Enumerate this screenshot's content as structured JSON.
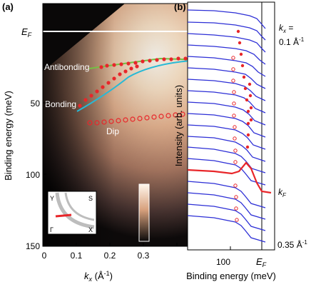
{
  "panel_a": {
    "label": "(a)",
    "ef_label": "E",
    "ef_sub": "F",
    "kf_label": "k",
    "kf_sub": "F",
    "ylabel": "Binding energy (meV)",
    "xlabel_k": "k",
    "xlabel_sub": "x",
    "xlabel_unit": " (Å",
    "xlabel_exp": "-1",
    "xlabel_close": ")",
    "yticks": [
      "50",
      "100",
      "150"
    ],
    "xticks": [
      "0",
      "0.1",
      "0.2",
      "0.3"
    ],
    "annotations": {
      "antibonding": "Antibonding",
      "bonding": "Bonding",
      "dip": "Dip"
    },
    "inset": {
      "y": "Y",
      "s": "S",
      "gamma": "Γ",
      "x": "X"
    }
  },
  "panel_b": {
    "label": "(b)",
    "ylabel": "Intensity (arb. units)",
    "xlabel": "Binding energy (meV)",
    "xtick": "100",
    "ef_label": "E",
    "ef_sub": "F",
    "kx_label": "k",
    "kx_sub": "x",
    "kx_eq": " =",
    "top_value": "0.1 Å",
    "top_exp": "-1",
    "kf_label": "k",
    "kf_sub": "F",
    "bottom_value": "0.35 Å",
    "bottom_exp": "-1"
  },
  "colors": {
    "accent_red": "#e8262a",
    "curve_blue": "#2d2fd6",
    "fit_cyan": "#27b9d6",
    "fit_green": "#74c043"
  }
}
